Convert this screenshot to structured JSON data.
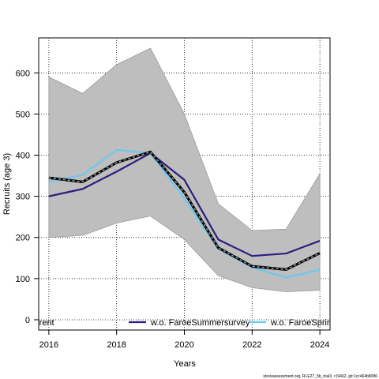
{
  "chart_data": {
    "type": "line",
    "xlabel": "Years",
    "ylabel": "Recruits (age 3)",
    "xlim": [
      2015.7,
      2024.3
    ],
    "ylim": [
      -25,
      685
    ],
    "x_ticks": [
      2016,
      2018,
      2020,
      2022,
      2024
    ],
    "y_ticks": [
      0,
      100,
      200,
      300,
      400,
      500,
      600
    ],
    "grid": true,
    "legend_position": "bottom",
    "band": {
      "x": [
        2016,
        2017,
        2018,
        2019,
        2020,
        2021,
        2022,
        2023,
        2024
      ],
      "lower": [
        200,
        205,
        235,
        252,
        195,
        107,
        78,
        68,
        72
      ],
      "upper": [
        590,
        550,
        620,
        660,
        500,
        282,
        217,
        220,
        355
      ],
      "color": "#bebebe"
    },
    "series": [
      {
        "name": "rrent",
        "style": "dashed-black",
        "color": "#000000",
        "x": [
          2016,
          2017,
          2018,
          2019,
          2020,
          2021,
          2022,
          2023,
          2024
        ],
        "values": [
          345,
          335,
          382,
          408,
          310,
          175,
          130,
          122,
          162
        ]
      },
      {
        "name": "w.o. FaroeSummersurvey",
        "style": "solid",
        "color": "#2e1e7d",
        "x": [
          2016,
          2017,
          2018,
          2019,
          2020,
          2021,
          2022,
          2023,
          2024
        ],
        "values": [
          300,
          318,
          360,
          405,
          340,
          195,
          155,
          161,
          192
        ]
      },
      {
        "name": "w.o. FaroeSpring",
        "style": "solid",
        "color": "#6bc9ef",
        "x": [
          2016,
          2017,
          2018,
          2019,
          2020,
          2021,
          2022,
          2023,
          2024
        ],
        "values": [
          335,
          352,
          413,
          405,
          295,
          172,
          127,
          103,
          121
        ]
      }
    ]
  },
  "footer": "stockassessment.org, RLE27_5b_trial3, r19462, git:1cc464b8086"
}
